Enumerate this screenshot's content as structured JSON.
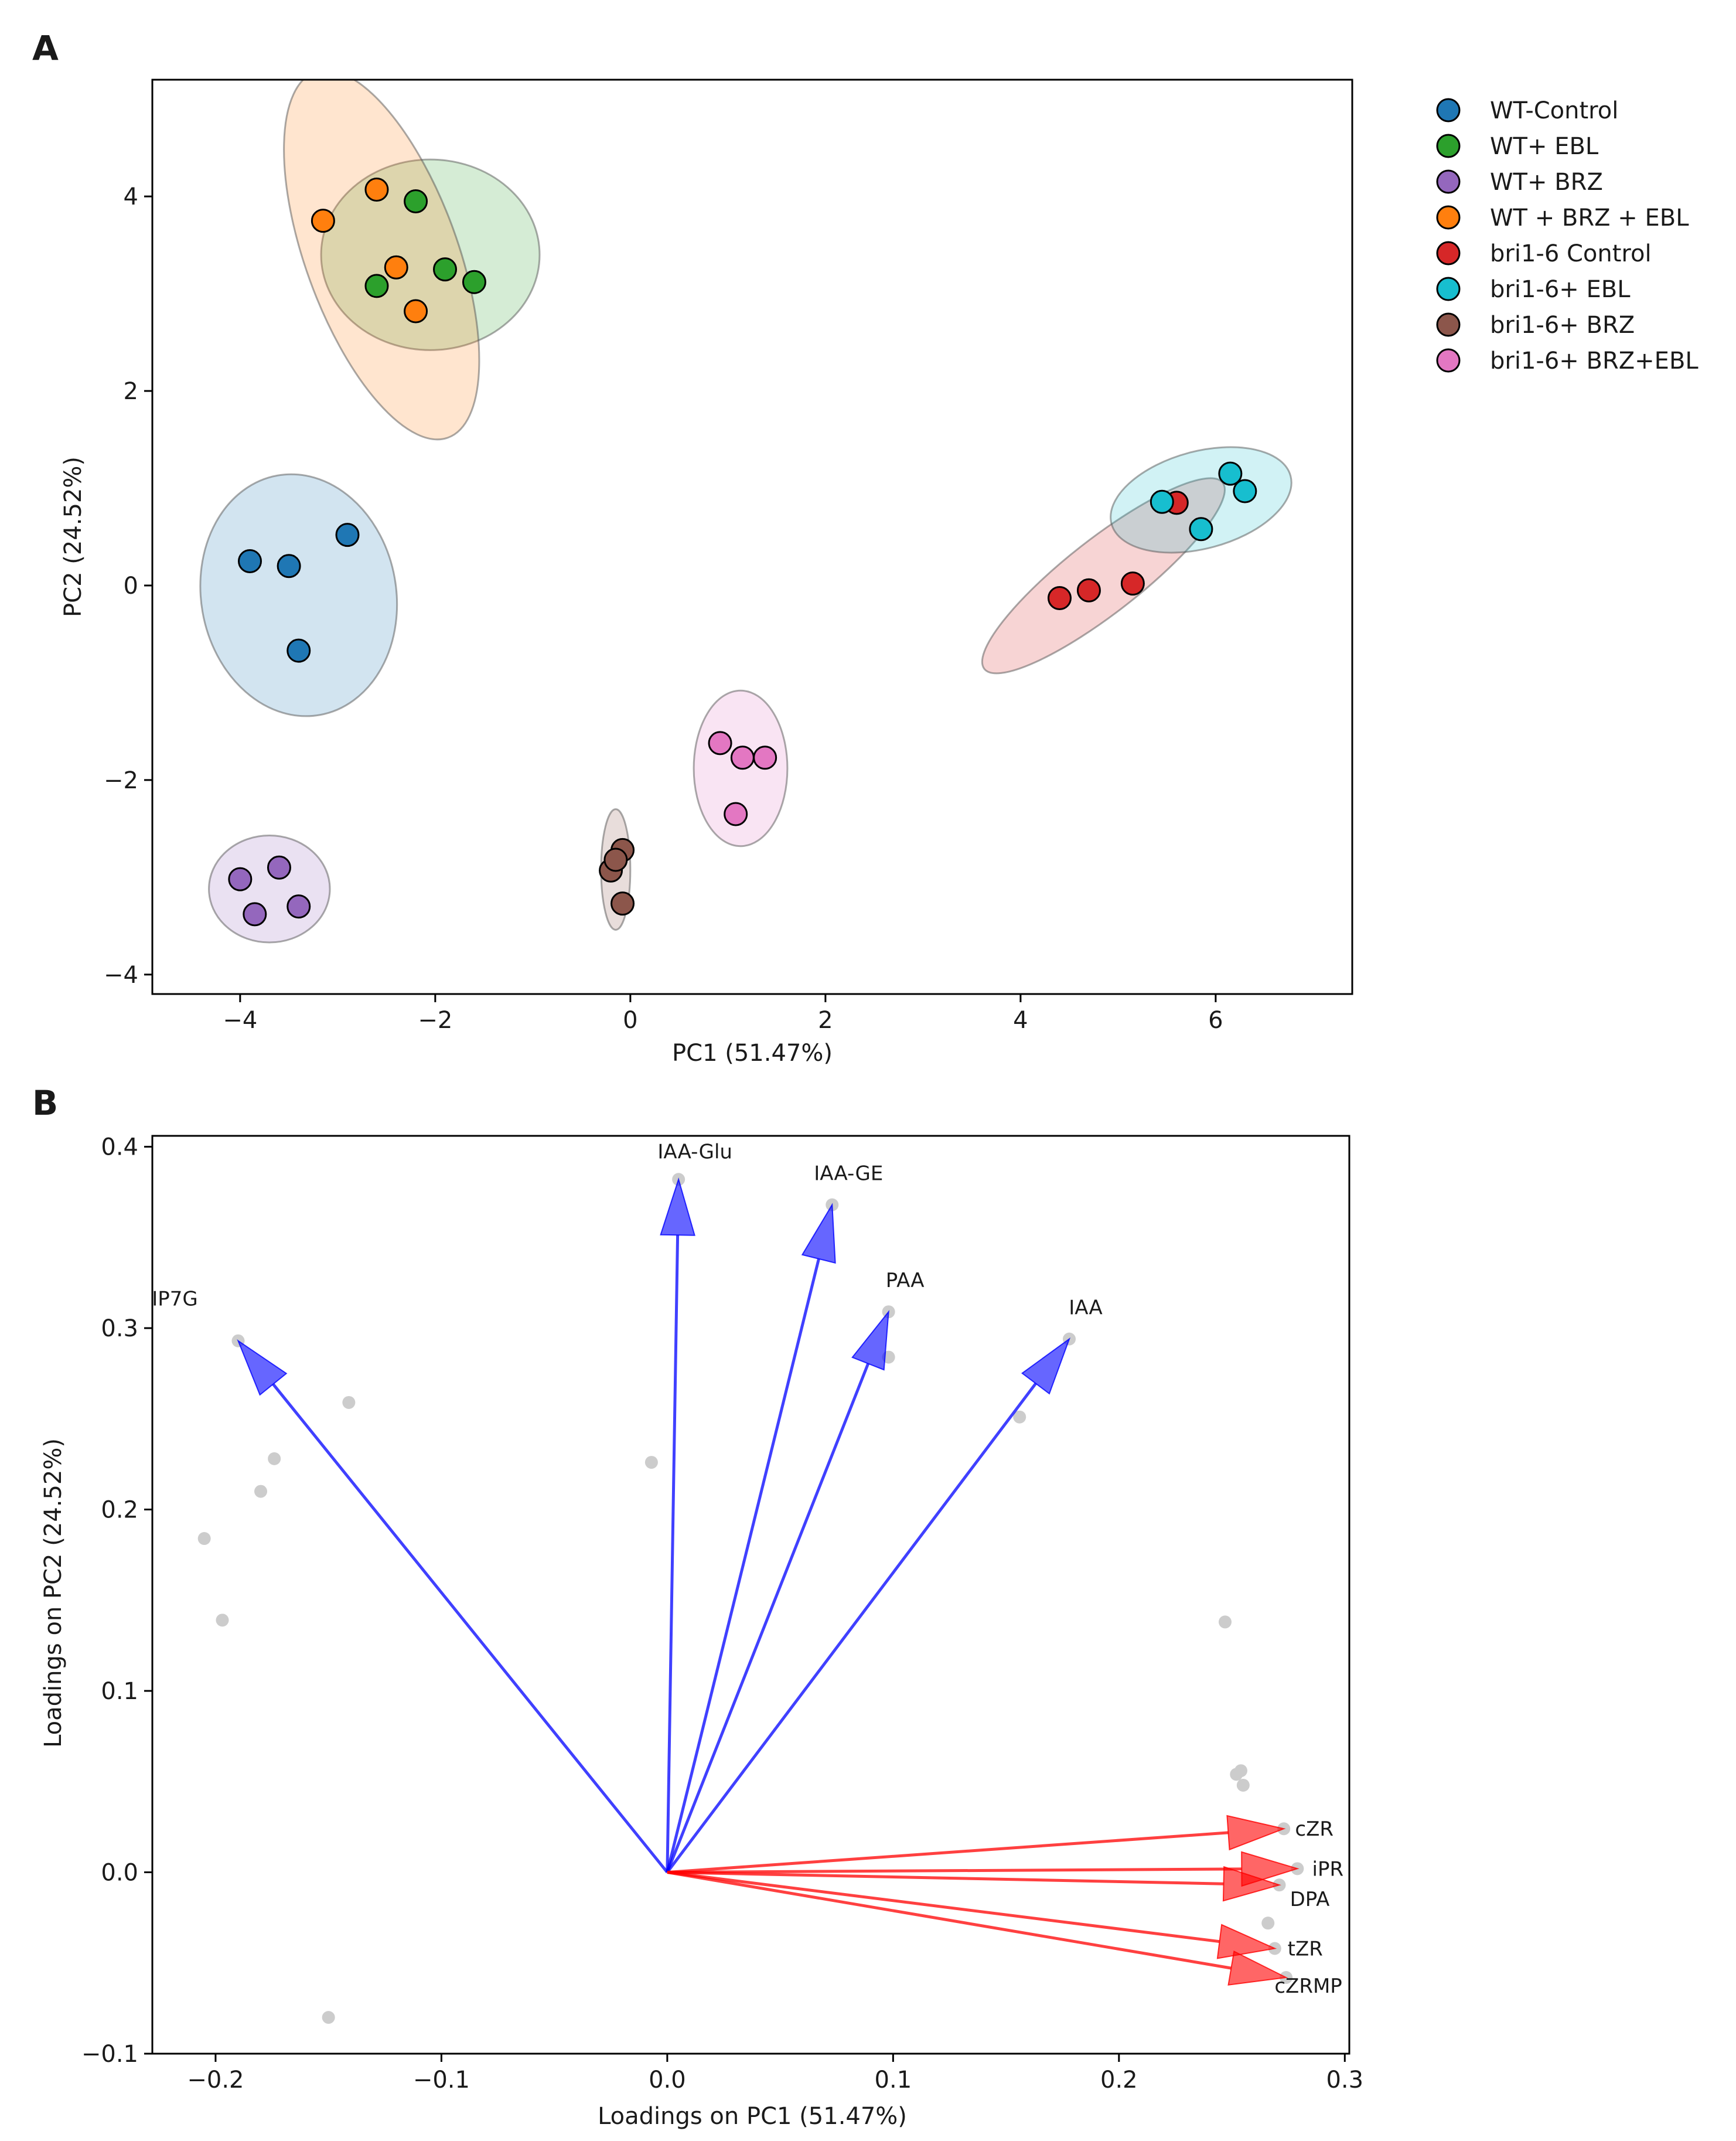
{
  "chart_data": [
    {
      "panel": "A",
      "type": "scatter",
      "xlabel": "PC1 (51.47%)",
      "ylabel": "PC2 (24.52%)",
      "xlim": [
        -4.9,
        7.4
      ],
      "ylim": [
        -4.2,
        5.2
      ],
      "xticks": [
        -4,
        -2,
        0,
        2,
        4,
        6
      ],
      "yticks": [
        -4,
        -2,
        0,
        2,
        4
      ],
      "xtick_labels": [
        "−4",
        "−2",
        "0",
        "2",
        "4",
        "6"
      ],
      "ytick_labels": [
        "−4",
        "−2",
        "0",
        "2",
        "4"
      ],
      "grid": false,
      "legend_position": "outside-right",
      "series": [
        {
          "name": "WT-Control",
          "color": "#1f77b4",
          "points": [
            [
              -3.9,
              0.25
            ],
            [
              -3.5,
              0.2
            ],
            [
              -2.9,
              0.52
            ],
            [
              -3.4,
              -0.67
            ]
          ],
          "ellipse": {
            "cx": -3.4,
            "cy": -0.1,
            "rx": 1.0,
            "ry": 1.25,
            "angle": 10
          }
        },
        {
          "name": "WT+ EBL",
          "color": "#2ca02c",
          "points": [
            [
              -2.2,
              3.95
            ],
            [
              -2.6,
              3.08
            ],
            [
              -1.9,
              3.25
            ],
            [
              -1.6,
              3.12
            ]
          ],
          "ellipse": {
            "cx": -2.05,
            "cy": 3.4,
            "rx": 1.12,
            "ry": 0.98,
            "angle": 0
          }
        },
        {
          "name": "WT+ BRZ",
          "color": "#9467bd",
          "points": [
            [
              -4.0,
              -3.02
            ],
            [
              -3.6,
              -2.9
            ],
            [
              -3.4,
              -3.3
            ],
            [
              -3.85,
              -3.38
            ]
          ],
          "ellipse": {
            "cx": -3.7,
            "cy": -3.12,
            "rx": 0.62,
            "ry": 0.55,
            "angle": 0
          }
        },
        {
          "name": "WT + BRZ + EBL",
          "color": "#ff7f0e",
          "points": [
            [
              -3.15,
              3.75
            ],
            [
              -2.6,
              4.07
            ],
            [
              -2.4,
              3.27
            ],
            [
              -2.2,
              2.82
            ]
          ],
          "ellipse": {
            "cx": -2.55,
            "cy": 3.4,
            "rx": 0.78,
            "ry": 2.0,
            "angle": 20
          }
        },
        {
          "name": "bri1-6 Control",
          "color": "#d62728",
          "points": [
            [
              4.4,
              -0.13
            ],
            [
              4.7,
              -0.05
            ],
            [
              5.15,
              0.02
            ],
            [
              5.6,
              0.85
            ]
          ],
          "ellipse": {
            "cx": 4.85,
            "cy": 0.1,
            "rx": 1.55,
            "ry": 0.38,
            "angle": 38
          }
        },
        {
          "name": "bri1-6+ EBL",
          "color": "#17becf",
          "points": [
            [
              5.45,
              0.86
            ],
            [
              5.85,
              0.58
            ],
            [
              6.15,
              1.15
            ],
            [
              6.3,
              0.97
            ]
          ],
          "ellipse": {
            "cx": 5.85,
            "cy": 0.88,
            "rx": 0.95,
            "ry": 0.5,
            "angle": 15
          }
        },
        {
          "name": "bri1-6+ BRZ",
          "color": "#8c564b",
          "points": [
            [
              -0.2,
              -2.93
            ],
            [
              -0.08,
              -2.72
            ],
            [
              -0.15,
              -2.82
            ],
            [
              -0.08,
              -3.27
            ]
          ],
          "ellipse": {
            "cx": -0.15,
            "cy": -2.92,
            "rx": 0.15,
            "ry": 0.62,
            "angle": 0
          }
        },
        {
          "name": "bri1-6+ BRZ+EBL",
          "color": "#e377c2",
          "points": [
            [
              0.92,
              -1.62
            ],
            [
              1.15,
              -1.77
            ],
            [
              1.38,
              -1.77
            ],
            [
              1.08,
              -2.35
            ]
          ],
          "ellipse": {
            "cx": 1.13,
            "cy": -1.88,
            "rx": 0.48,
            "ry": 0.8,
            "angle": 0
          }
        }
      ]
    },
    {
      "panel": "B",
      "type": "scatter",
      "subtype": "pca-loadings-biplot",
      "xlabel": "Loadings on PC1 (51.47%)",
      "ylabel": "Loadings on PC2 (24.52%)",
      "xlim": [
        -0.228,
        0.302
      ],
      "ylim": [
        -0.1,
        0.406
      ],
      "xticks": [
        -0.2,
        -0.1,
        0.0,
        0.1,
        0.2,
        0.3
      ],
      "yticks": [
        -0.1,
        0.0,
        0.1,
        0.2,
        0.3,
        0.4
      ],
      "xtick_labels": [
        "−0.2",
        "−0.1",
        "0.0",
        "0.1",
        "0.2",
        "0.3"
      ],
      "ytick_labels": [
        "−0.1",
        "0.0",
        "0.1",
        "0.2",
        "0.3",
        "0.4"
      ],
      "grid": false,
      "arrows": [
        {
          "label": "IP7G",
          "x": -0.19,
          "y": 0.293,
          "color": "#0000ff",
          "group": "positive PC2"
        },
        {
          "label": "IAA-Glu",
          "x": 0.005,
          "y": 0.382,
          "color": "#0000ff",
          "group": "positive PC2"
        },
        {
          "label": "IAA-GE",
          "x": 0.073,
          "y": 0.368,
          "color": "#0000ff",
          "group": "positive PC2"
        },
        {
          "label": "PAA",
          "x": 0.098,
          "y": 0.309,
          "color": "#0000ff",
          "group": "positive PC2"
        },
        {
          "label": "IAA",
          "x": 0.178,
          "y": 0.294,
          "color": "#0000ff",
          "group": "positive PC2"
        },
        {
          "label": "cZR",
          "x": 0.273,
          "y": 0.024,
          "color": "#ff0000",
          "group": "positive PC1"
        },
        {
          "label": "iPR",
          "x": 0.279,
          "y": 0.002,
          "color": "#ff0000",
          "group": "positive PC1"
        },
        {
          "label": "DPA",
          "x": 0.271,
          "y": -0.007,
          "color": "#ff0000",
          "group": "positive PC1"
        },
        {
          "label": "tZR",
          "x": 0.269,
          "y": -0.042,
          "color": "#ff0000",
          "group": "positive PC1"
        },
        {
          "label": "cZRMP",
          "x": 0.274,
          "y": -0.058,
          "color": "#ff0000",
          "group": "positive PC1"
        }
      ],
      "other_loadings": [
        [
          -0.141,
          0.259
        ],
        [
          -0.174,
          0.228
        ],
        [
          -0.18,
          0.21
        ],
        [
          -0.205,
          0.184
        ],
        [
          -0.197,
          0.139
        ],
        [
          -0.15,
          -0.08
        ],
        [
          -0.007,
          0.226
        ],
        [
          0.098,
          0.284
        ],
        [
          0.156,
          0.251
        ],
        [
          0.247,
          0.138
        ],
        [
          0.254,
          0.056
        ],
        [
          0.252,
          0.054
        ],
        [
          0.255,
          0.048
        ],
        [
          0.266,
          -0.028
        ]
      ]
    }
  ]
}
